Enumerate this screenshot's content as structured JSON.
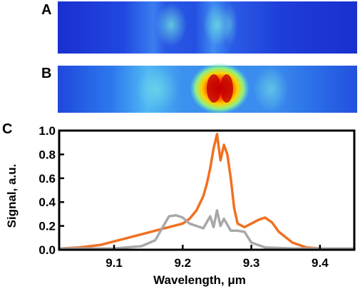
{
  "panels": {
    "a_label": "A",
    "b_label": "B",
    "c_label": "C"
  },
  "chart_data": {
    "type": "line",
    "title": "",
    "xlabel": "Wavelength, μm",
    "ylabel": "Signal, a.u.",
    "xlim": [
      9.02,
      9.45
    ],
    "ylim": [
      0.0,
      1.0
    ],
    "xticks": [
      "9.1",
      "9.2",
      "9.3",
      "9.4"
    ],
    "xtick_values": [
      9.1,
      9.2,
      9.3,
      9.4
    ],
    "yticks": [
      "0.0",
      "0.2",
      "0.4",
      "0.6",
      "0.8",
      "1.0"
    ],
    "ytick_values": [
      0.0,
      0.2,
      0.4,
      0.6,
      0.8,
      1.0
    ],
    "grid": false,
    "series": [
      {
        "color": "#f07020",
        "x": [
          9.02,
          9.05,
          9.08,
          9.1,
          9.12,
          9.14,
          9.16,
          9.18,
          9.2,
          9.21,
          9.22,
          9.23,
          9.235,
          9.24,
          9.245,
          9.25,
          9.255,
          9.26,
          9.265,
          9.27,
          9.275,
          9.28,
          9.29,
          9.3,
          9.31,
          9.32,
          9.33,
          9.34,
          9.36,
          9.38,
          9.4,
          9.45
        ],
        "y": [
          0.01,
          0.02,
          0.04,
          0.07,
          0.1,
          0.13,
          0.16,
          0.19,
          0.22,
          0.26,
          0.33,
          0.45,
          0.55,
          0.68,
          0.85,
          0.97,
          0.75,
          0.88,
          0.8,
          0.6,
          0.35,
          0.22,
          0.19,
          0.22,
          0.25,
          0.27,
          0.23,
          0.15,
          0.06,
          0.02,
          0.01,
          0.01
        ]
      },
      {
        "color": "#a8a8a8",
        "x": [
          9.02,
          9.1,
          9.14,
          9.16,
          9.17,
          9.18,
          9.19,
          9.2,
          9.21,
          9.22,
          9.23,
          9.24,
          9.245,
          9.25,
          9.255,
          9.26,
          9.27,
          9.28,
          9.29,
          9.3,
          9.32,
          9.36,
          9.45
        ],
        "y": [
          0.01,
          0.01,
          0.03,
          0.08,
          0.18,
          0.28,
          0.29,
          0.27,
          0.22,
          0.2,
          0.18,
          0.28,
          0.19,
          0.33,
          0.2,
          0.26,
          0.16,
          0.16,
          0.15,
          0.06,
          0.02,
          0.01,
          0.01
        ]
      }
    ]
  }
}
